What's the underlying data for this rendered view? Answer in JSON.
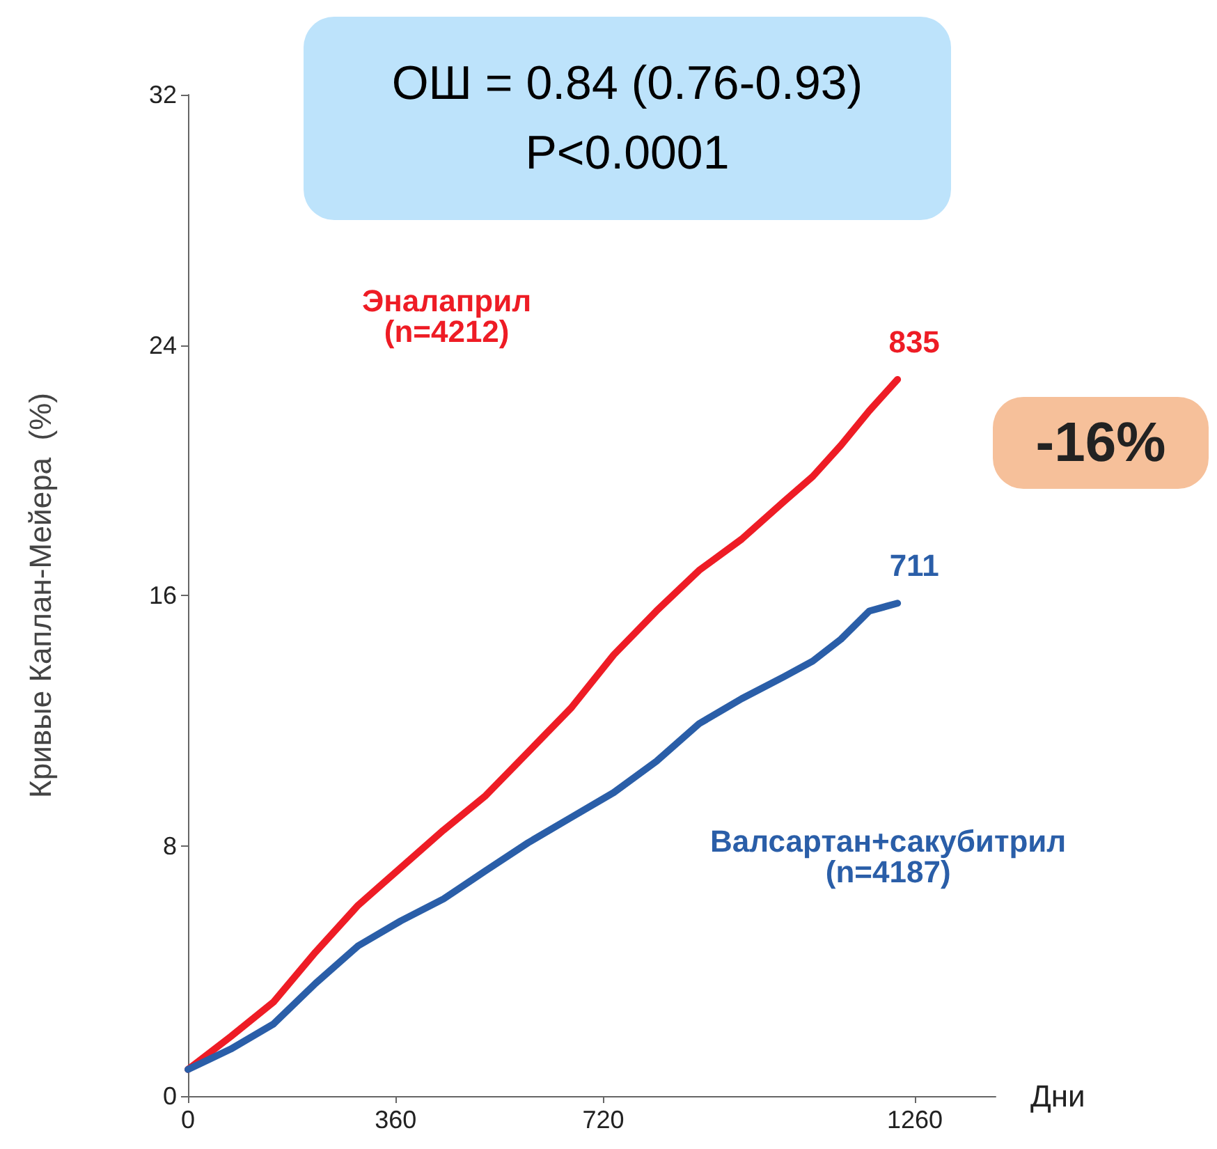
{
  "chart_data": {
    "type": "line",
    "xlabel": "Дни",
    "ylabel": "Кривые Каплан-Мейера  (%)",
    "xlim": [
      0,
      1400
    ],
    "xticks": [
      0,
      360,
      720,
      1260
    ],
    "ylim": [
      0,
      32
    ],
    "yticks": [
      0,
      8,
      16,
      24,
      32
    ],
    "grid": false,
    "legend": false,
    "marker": "none",
    "line_style": "solid",
    "annotations": [
      "ОШ = 0.84 (0.76-0.93)\nP<0.0001",
      "-16%",
      {
        "text": "835",
        "x": 1230,
        "y": 22.9
      },
      {
        "text": "711",
        "x": 1230,
        "y": 15.75
      }
    ],
    "series": [
      {
        "name": "Эналаприл\n(n=4212)",
        "color": "#ee1c25",
        "x": [
          0,
          74,
          148,
          221,
          295,
          369,
          443,
          516,
          590,
          664,
          738,
          812,
          886,
          960,
          1033,
          1083,
          1132,
          1181,
          1230
        ],
        "values": [
          0.85,
          1.9,
          3.0,
          4.6,
          6.1,
          7.3,
          8.5,
          9.6,
          11.0,
          12.4,
          14.1,
          15.5,
          16.8,
          17.8,
          19.0,
          19.8,
          20.8,
          21.9,
          22.9
        ]
      },
      {
        "name": "Валсартан+сакубитрил\n(n=4187)",
        "color": "#2a5ea8",
        "x": [
          0,
          74,
          148,
          221,
          295,
          369,
          443,
          516,
          590,
          664,
          738,
          812,
          886,
          960,
          1033,
          1083,
          1132,
          1181,
          1230
        ],
        "values": [
          0.85,
          1.5,
          2.3,
          3.6,
          4.8,
          5.6,
          6.3,
          7.2,
          8.1,
          8.9,
          9.7,
          10.7,
          11.9,
          12.7,
          13.4,
          13.9,
          14.6,
          15.5,
          15.75
        ]
      }
    ]
  }
}
